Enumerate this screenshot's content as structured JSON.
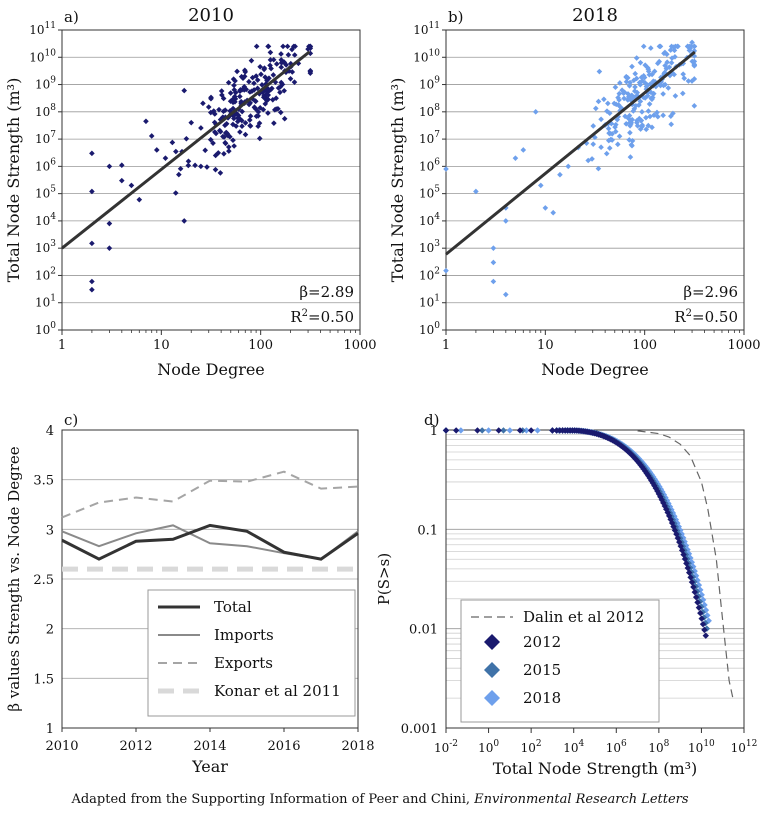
{
  "caption": {
    "prefix": "Adapted from the Supporting Information of Peer and Chini, ",
    "journal": "Environmental Research Letters"
  },
  "chart_data": [
    {
      "id": "a",
      "panel_label": "a)",
      "type": "scatter",
      "title": "2010",
      "xlabel": "Node Degree",
      "ylabel": "Total Node Strength (m³)",
      "xscale": "log",
      "yscale": "log",
      "xlim": [
        1,
        1000
      ],
      "ylim": [
        1,
        100000000000
      ],
      "xtick_labels": [
        "1",
        "10",
        "100",
        "1000"
      ],
      "ytick_exponents": [
        "0",
        "1",
        "2",
        "3",
        "4",
        "5",
        "6",
        "7",
        "8",
        "9",
        "10",
        "11"
      ],
      "marker_color": "#1a1a6e",
      "fit": {
        "beta": 2.89,
        "r2": 0.5,
        "x_range": [
          1,
          310
        ],
        "y_at_x1": 1000
      },
      "annotation_beta": "β=2.89",
      "annotation_r2_prefix": "R",
      "annotation_r2_value": "=0.50",
      "cluster": {
        "center_log_degree": 1.9,
        "spread": 0.28,
        "count": 230,
        "seed": 11
      },
      "points": [
        [
          2,
          3000000
        ],
        [
          2,
          120000
        ],
        [
          2,
          1500
        ],
        [
          2,
          60
        ],
        [
          2,
          30
        ],
        [
          3,
          8000
        ],
        [
          3,
          1000
        ],
        [
          3,
          1000000
        ],
        [
          4,
          1100000
        ],
        [
          4,
          300000
        ],
        [
          5,
          200000
        ],
        [
          6,
          60000
        ],
        [
          7,
          45000000
        ],
        [
          8,
          13000000
        ],
        [
          9,
          4000000
        ],
        [
          11,
          2000000
        ],
        [
          14,
          3500000
        ],
        [
          15,
          500000
        ],
        [
          17,
          10000
        ],
        [
          17,
          600000000
        ],
        [
          20,
          40000000
        ],
        [
          25,
          1000000
        ],
        [
          30,
          150000000
        ],
        [
          300,
          20000000000
        ]
      ]
    },
    {
      "id": "b",
      "panel_label": "b)",
      "type": "scatter",
      "title": "2018",
      "xlabel": "Node Degree",
      "ylabel": "Total Node Strength (m³)",
      "xscale": "log",
      "yscale": "log",
      "xlim": [
        1,
        1000
      ],
      "ylim": [
        1,
        100000000000
      ],
      "xtick_labels": [
        "1",
        "10",
        "100",
        "1000"
      ],
      "ytick_exponents": [
        "0",
        "1",
        "2",
        "3",
        "4",
        "5",
        "6",
        "7",
        "8",
        "9",
        "10",
        "11"
      ],
      "marker_color": "#6ea0ec",
      "fit": {
        "beta": 2.96,
        "r2": 0.5,
        "x_range": [
          1,
          320
        ],
        "y_at_x1": 600
      },
      "annotation_beta": "β=2.96",
      "annotation_r2_prefix": "R",
      "annotation_r2_value": "=0.50",
      "cluster": {
        "center_log_degree": 1.95,
        "spread": 0.3,
        "count": 230,
        "seed": 29
      },
      "points": [
        [
          1,
          800000
        ],
        [
          1,
          150
        ],
        [
          2,
          120000
        ],
        [
          3,
          300
        ],
        [
          3,
          60
        ],
        [
          3,
          1000
        ],
        [
          4,
          20
        ],
        [
          4,
          10000
        ],
        [
          4,
          30000
        ],
        [
          5,
          2000000
        ],
        [
          6,
          4000000
        ],
        [
          8,
          100000000
        ],
        [
          9,
          200000
        ],
        [
          10,
          30000
        ],
        [
          12,
          20000
        ],
        [
          17,
          1000000
        ],
        [
          35,
          3000000000
        ],
        [
          160,
          15000000000
        ],
        [
          300,
          35000000000
        ]
      ]
    },
    {
      "id": "c",
      "panel_label": "c)",
      "type": "line",
      "xlabel": "Year",
      "ylabel": "β values Strength vs. Node Degree",
      "xlim": [
        2010,
        2018
      ],
      "ylim": [
        1,
        4
      ],
      "xtick_labels": [
        "2010",
        "2012",
        "2014",
        "2016",
        "2018"
      ],
      "ytick_labels": [
        "1",
        "1.5",
        "2",
        "2.5",
        "3",
        "3.5",
        "4"
      ],
      "x": [
        2010,
        2011,
        2012,
        2013,
        2014,
        2015,
        2016,
        2017,
        2018
      ],
      "series": [
        {
          "name": "Total",
          "color": "#333333",
          "dash": "",
          "width": 3,
          "values": [
            2.89,
            2.7,
            2.88,
            2.9,
            3.04,
            2.98,
            2.77,
            2.7,
            2.96
          ]
        },
        {
          "name": "Imports",
          "color": "#8a8a8a",
          "dash": "",
          "width": 2,
          "values": [
            2.98,
            2.83,
            2.96,
            3.04,
            2.86,
            2.83,
            2.76,
            2.7,
            2.98
          ]
        },
        {
          "name": "Exports",
          "color": "#a5a5a5",
          "dash": "9 6",
          "width": 2,
          "values": [
            3.12,
            3.27,
            3.32,
            3.28,
            3.49,
            3.48,
            3.58,
            3.41,
            3.43
          ]
        },
        {
          "name": "Konar et al 2011",
          "color": "#d9d9d9",
          "dash": "16 9",
          "width": 5,
          "values": [
            2.6,
            2.6,
            2.6,
            2.6,
            2.6,
            2.6,
            2.6,
            2.6,
            2.6
          ]
        }
      ]
    },
    {
      "id": "d",
      "panel_label": "d)",
      "type": "scatter",
      "xlabel": "Total Node Strength (m³)",
      "ylabel": "P(S>s)",
      "xscale": "log",
      "yscale": "log",
      "xlim": [
        0.01,
        1000000000000
      ],
      "ylim": [
        0.001,
        1
      ],
      "xtick_exponents": [
        "-2",
        "0",
        "2",
        "4",
        "6",
        "8",
        "10",
        "12"
      ],
      "ytick_labels": [
        "0.001",
        "0.01",
        "0.1",
        "1"
      ],
      "reference": {
        "name": "Dalin et al  2012",
        "color": "#666666",
        "dash": "8 5",
        "x": [
          10000000.0,
          100000000.0,
          300000000.0,
          1000000000.0,
          3000000000.0,
          10000000000.0,
          20000000000.0,
          50000000000.0,
          100000000000.0,
          200000000000.0,
          300000000000.0
        ],
        "y": [
          0.98,
          0.92,
          0.85,
          0.72,
          0.55,
          0.3,
          0.16,
          0.05,
          0.012,
          0.003,
          0.002
        ]
      },
      "series": [
        {
          "name": "2012",
          "color": "#1a1a6e",
          "xmax": 16000000000,
          "ymin": 0.0085,
          "flat_x": [
            0.01,
            0.03,
            0.3,
            3,
            30,
            100,
            3000
          ]
        },
        {
          "name": "2015",
          "color": "#3f72a8",
          "xmax": 18000000000,
          "ymin": 0.01,
          "flat_x": [
            0.01,
            0.5,
            5,
            40,
            5000
          ]
        },
        {
          "name": "2018",
          "color": "#6ea0ec",
          "xmax": 22000000000,
          "ymin": 0.012,
          "flat_x": [
            0.01,
            0.05,
            1,
            10,
            60,
            200,
            2000
          ]
        }
      ]
    }
  ]
}
